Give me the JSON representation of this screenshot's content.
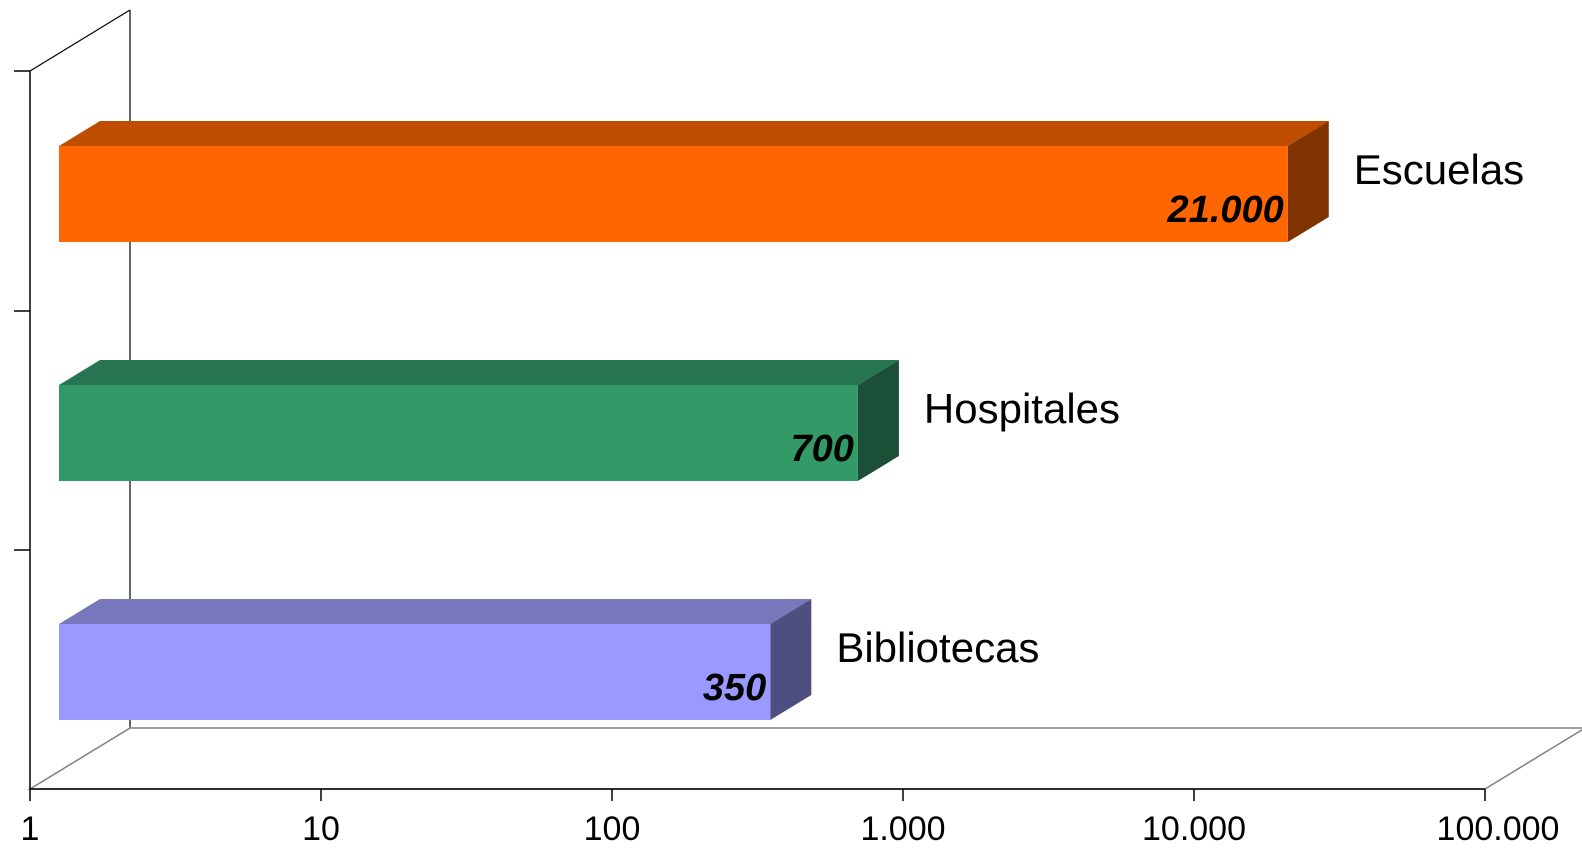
{
  "chart_data": {
    "type": "bar",
    "orientation": "horizontal",
    "style": "3d",
    "x_scale": "log",
    "xlim": [
      1,
      100000
    ],
    "x_ticks": [
      1,
      10,
      100,
      1000,
      10000,
      100000
    ],
    "x_tick_labels": [
      "1",
      "10",
      "100",
      "1.000",
      "10.000",
      "100.000"
    ],
    "categories": [
      "Bibliotecas",
      "Hospitales",
      "Escuelas"
    ],
    "values": [
      350,
      700,
      21000
    ],
    "value_labels": [
      "350",
      "700",
      "21.000"
    ],
    "colors": [
      {
        "front": "#9999ff",
        "top": "#7777bb",
        "side": "#4e4e80"
      },
      {
        "front": "#339966",
        "top": "#277550",
        "side": "#1c4f37"
      },
      {
        "front": "#ff6600",
        "top": "#bf4d00",
        "side": "#7f3300"
      }
    ],
    "title": "",
    "xlabel": "",
    "ylabel": "",
    "grid": false,
    "legend": "none"
  }
}
